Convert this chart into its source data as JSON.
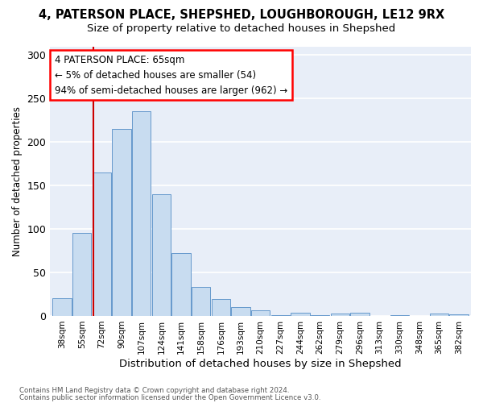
{
  "title": "4, PATERSON PLACE, SHEPSHED, LOUGHBOROUGH, LE12 9RX",
  "subtitle": "Size of property relative to detached houses in Shepshed",
  "xlabel": "Distribution of detached houses by size in Shepshed",
  "ylabel": "Number of detached properties",
  "bar_color": "#c8dcf0",
  "bar_edge_color": "#6699cc",
  "categories": [
    "38sqm",
    "55sqm",
    "72sqm",
    "90sqm",
    "107sqm",
    "124sqm",
    "141sqm",
    "158sqm",
    "176sqm",
    "193sqm",
    "210sqm",
    "227sqm",
    "244sqm",
    "262sqm",
    "279sqm",
    "296sqm",
    "313sqm",
    "330sqm",
    "348sqm",
    "365sqm",
    "382sqm"
  ],
  "bar_heights": [
    20,
    95,
    165,
    215,
    235,
    140,
    72,
    33,
    19,
    10,
    6,
    1,
    4,
    1,
    3,
    4,
    0,
    1,
    0,
    3,
    2
  ],
  "ylim_max": 310,
  "yticks": [
    0,
    50,
    100,
    150,
    200,
    250,
    300
  ],
  "vline_color": "#cc0000",
  "annotation_text": "4 PATERSON PLACE: 65sqm\n← 5% of detached houses are smaller (54)\n94% of semi-detached houses are larger (962) →",
  "footer_line1": "Contains HM Land Registry data © Crown copyright and database right 2024.",
  "footer_line2": "Contains public sector information licensed under the Open Government Licence v3.0.",
  "background_color": "#e8eef8"
}
